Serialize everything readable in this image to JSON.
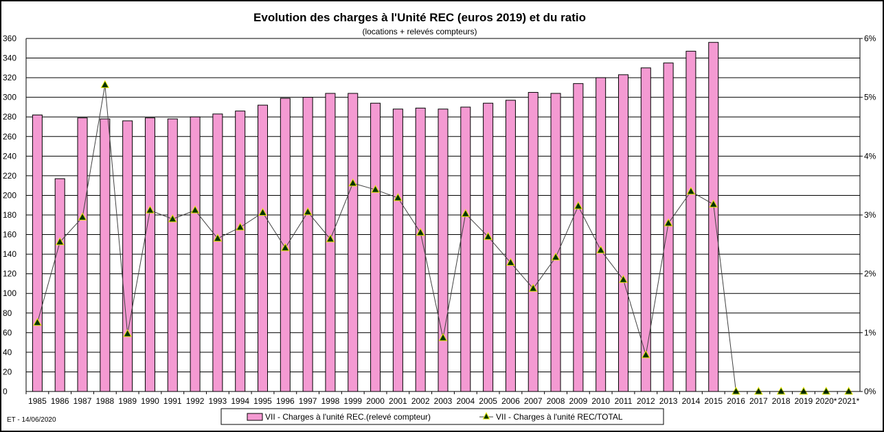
{
  "chart_data": {
    "type": "bar+line",
    "title": "Evolution des charges à l'Unité REC (euros 2019) et du ratio",
    "subtitle": "(locations + relevés compteurs)",
    "footnote": "ET -  14/06/2020",
    "categories": [
      "1985",
      "1986",
      "1987",
      "1988",
      "1989",
      "1990",
      "1991",
      "1992",
      "1993",
      "1994",
      "1995",
      "1996",
      "1997",
      "1998",
      "1999",
      "2000",
      "2001",
      "2002",
      "2003",
      "2004",
      "2005",
      "2006",
      "2007",
      "2008",
      "2009",
      "2010",
      "2011",
      "2012",
      "2013",
      "2014",
      "2015",
      "2016",
      "2017",
      "2018",
      "2019",
      "2020*",
      "2021*"
    ],
    "ylim": [
      0,
      360
    ],
    "yticks": [
      0,
      20,
      40,
      60,
      80,
      100,
      120,
      140,
      160,
      180,
      200,
      220,
      240,
      260,
      280,
      300,
      320,
      340,
      360
    ],
    "y2lim": [
      0,
      6
    ],
    "y2ticks": [
      "0%",
      "1%",
      "2%",
      "3%",
      "4%",
      "5%",
      "6%"
    ],
    "grid": true,
    "legend_position": "bottom",
    "series": [
      {
        "name": "VII - Charges à l'unité REC.(relevé  compteur)",
        "type": "bar",
        "axis": "left",
        "color": "#f49ad2",
        "values": [
          282,
          217,
          279,
          278,
          276,
          279,
          278,
          280,
          283,
          286,
          292,
          299,
          300,
          304,
          304,
          294,
          288,
          289,
          288,
          290,
          294,
          297,
          305,
          304,
          314,
          320,
          323,
          330,
          335,
          347,
          356,
          null,
          null,
          null,
          null,
          null,
          null
        ]
      },
      {
        "name": "VII - Charges à l'unité REC/TOTAL",
        "type": "line",
        "axis": "right",
        "unit": "%",
        "color": "#404040",
        "marker_color": "#003300",
        "marker_edge": "#e8e800",
        "values": [
          1.17,
          2.54,
          2.96,
          5.21,
          0.98,
          3.08,
          2.93,
          3.08,
          2.6,
          2.79,
          3.04,
          2.44,
          3.05,
          2.59,
          3.54,
          3.43,
          3.29,
          2.7,
          0.91,
          3.02,
          2.63,
          2.19,
          1.75,
          2.28,
          3.15,
          2.4,
          1.9,
          0.62,
          2.86,
          3.4,
          3.18,
          0,
          0,
          0,
          0,
          0,
          0
        ]
      }
    ]
  }
}
